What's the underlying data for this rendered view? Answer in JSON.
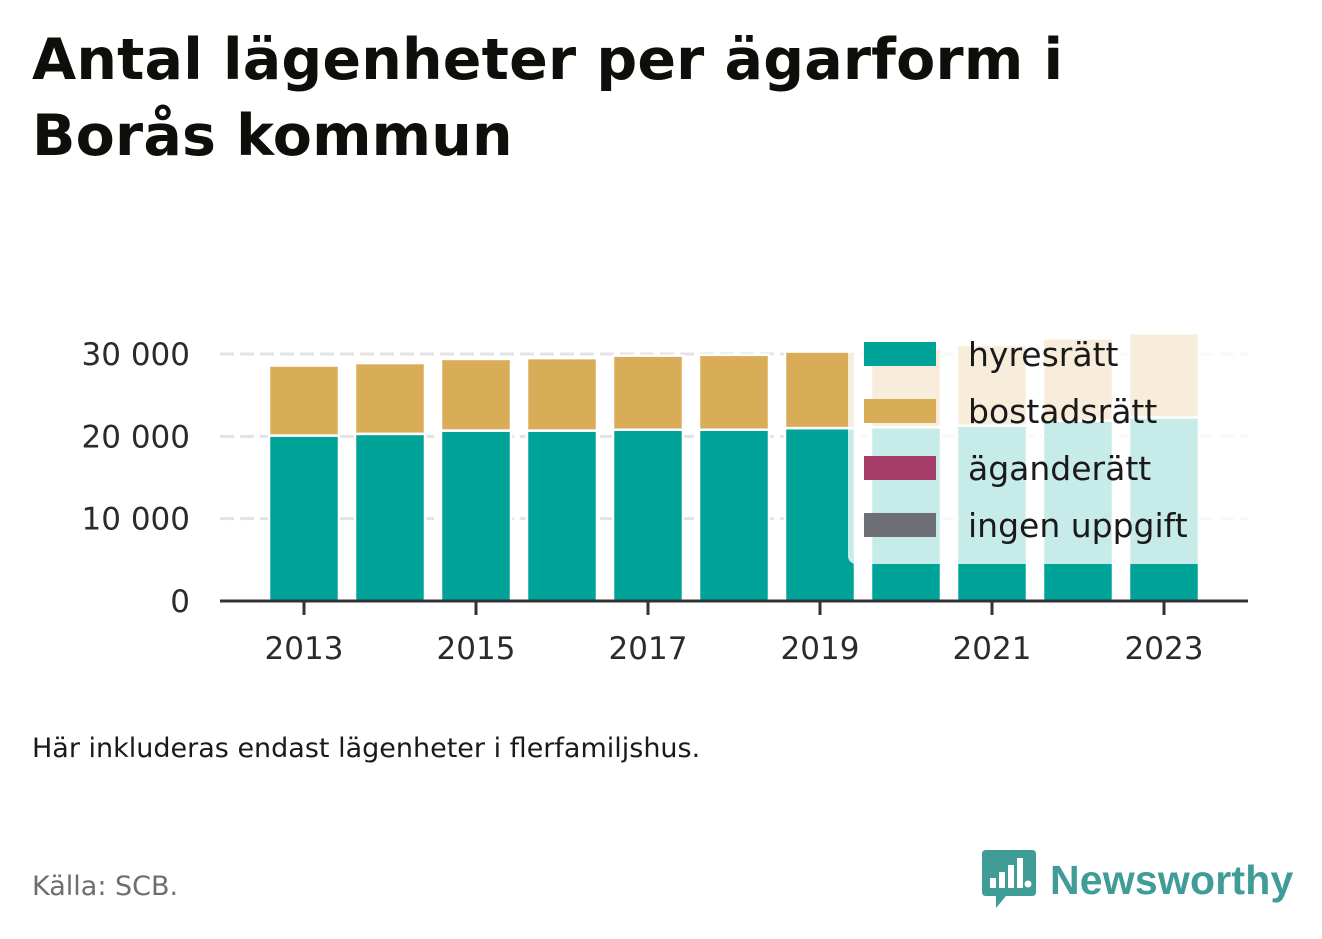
{
  "title": "Antal lägenheter per ägarform i Borås kommun",
  "note": "Här inkluderas endast lägenheter i flerfamiljshus.",
  "source": "Källa: SCB.",
  "brand": {
    "name": "Newsworthy",
    "logo_icon": "bar-chart-speech-bubble-icon",
    "color": "#3f9c97"
  },
  "chart_data": {
    "type": "bar",
    "stacked": true,
    "categories": [
      "2013",
      "2014",
      "2015",
      "2016",
      "2017",
      "2018",
      "2019",
      "2020",
      "2021",
      "2022",
      "2023"
    ],
    "x_tick_labels": [
      "2013",
      "2015",
      "2017",
      "2019",
      "2021",
      "2023"
    ],
    "y_tick_labels": [
      "0",
      "10 000",
      "20 000",
      "30 000"
    ],
    "y_ticks": [
      0,
      10000,
      20000,
      30000
    ],
    "ylim": [
      0,
      30000
    ],
    "grid": true,
    "legend_position": "top-right",
    "series": [
      {
        "name": "hyresrätt",
        "color": "#00a398",
        "values": [
          20100,
          20300,
          20700,
          20700,
          20800,
          20800,
          21000,
          21100,
          21300,
          21900,
          22300
        ]
      },
      {
        "name": "bostadsrätt",
        "color": "#d9ac57",
        "values": [
          8500,
          8600,
          8700,
          8800,
          9000,
          9100,
          9300,
          9500,
          9800,
          10000,
          10200
        ]
      },
      {
        "name": "äganderätt",
        "color": "#a43c67",
        "values": [
          0,
          0,
          0,
          0,
          0,
          0,
          0,
          0,
          0,
          0,
          0
        ]
      },
      {
        "name": "ingen uppgift",
        "color": "#6e6e75",
        "values": [
          0,
          0,
          0,
          0,
          0,
          0,
          0,
          0,
          0,
          0,
          0
        ]
      }
    ]
  }
}
